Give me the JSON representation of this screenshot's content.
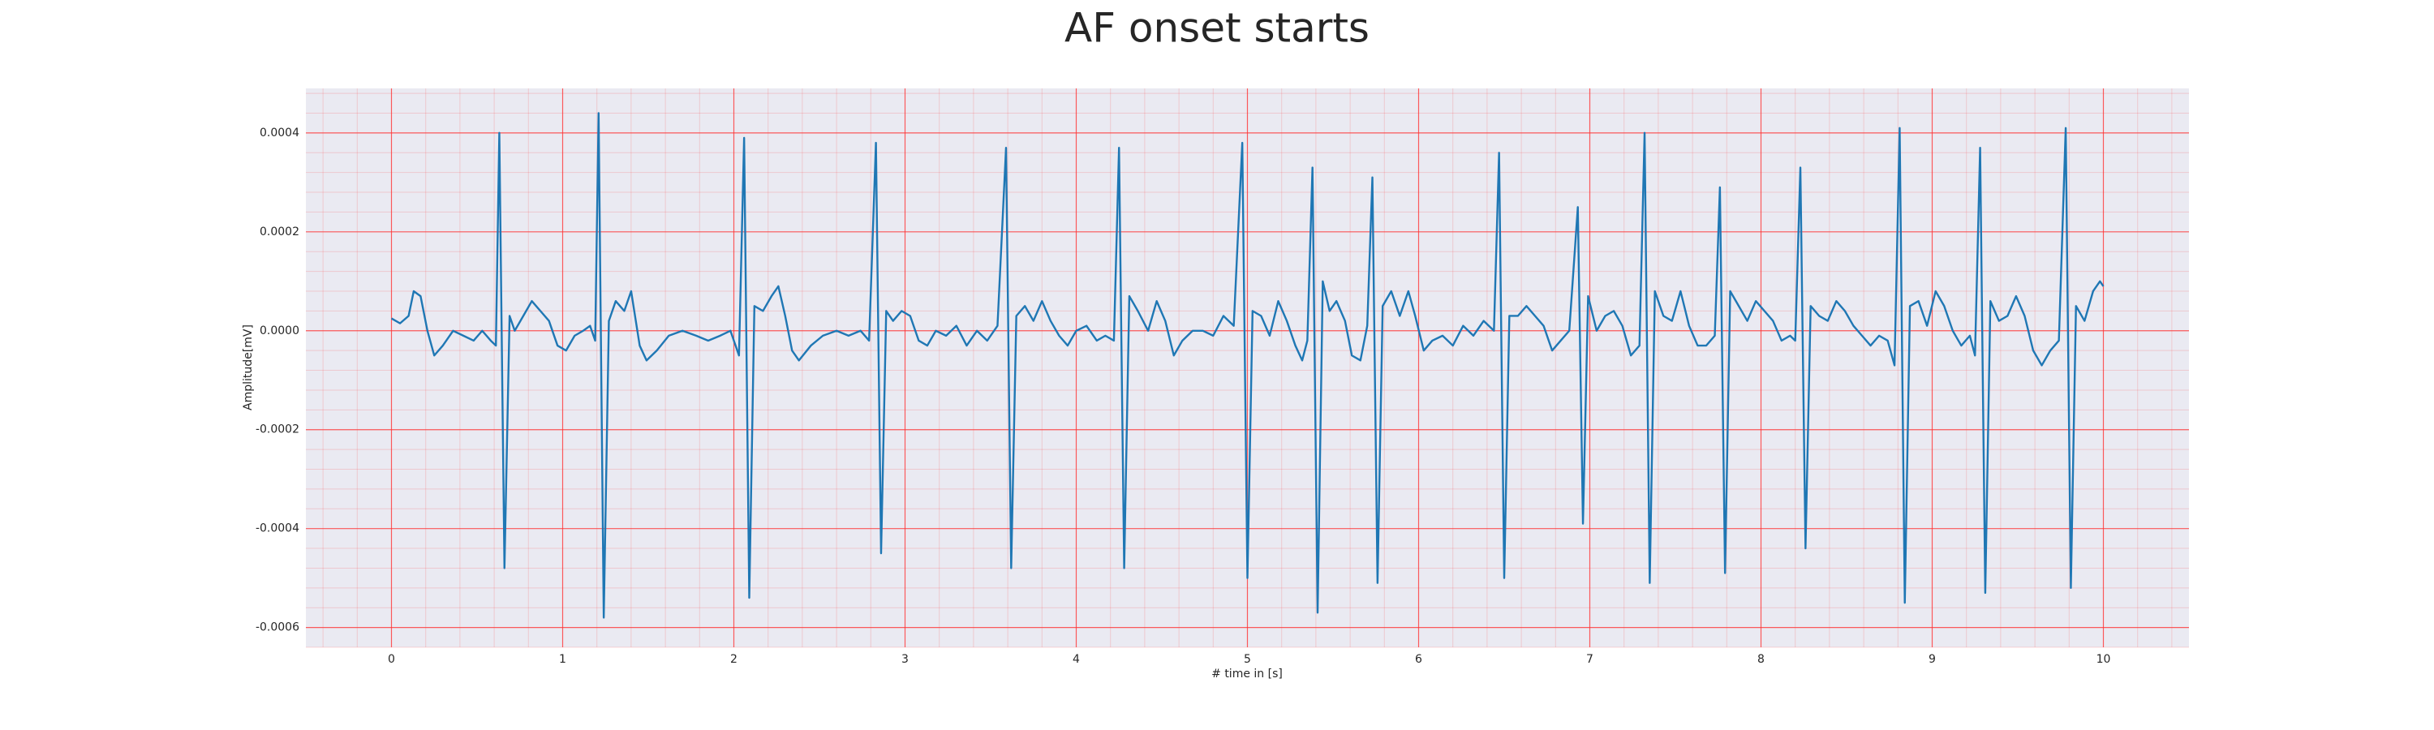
{
  "chart_data": {
    "type": "line",
    "title": "AF onset starts",
    "xlabel": "# time in [s]",
    "ylabel": "Amplitude[mV]",
    "color": "#1f77b4",
    "grid": true,
    "grid_color": "#ff3333",
    "background": "#eaeaf2",
    "xlim": [
      -0.5,
      10.5
    ],
    "ylim": [
      -0.00064,
      0.00049
    ],
    "xticks": [
      0,
      1,
      2,
      3,
      4,
      5,
      6,
      7,
      8,
      9,
      10
    ],
    "yticks": [
      -0.0006,
      -0.0004,
      -0.0002,
      {
        "value": 0,
        "label": "0.0000"
      },
      0.0002,
      0.0004
    ],
    "x": [
      0.0,
      0.05,
      0.1,
      0.13,
      0.17,
      0.21,
      0.25,
      0.3,
      0.36,
      0.42,
      0.48,
      0.53,
      0.58,
      0.61,
      0.63,
      0.66,
      0.69,
      0.72,
      0.77,
      0.82,
      0.87,
      0.92,
      0.97,
      1.02,
      1.07,
      1.12,
      1.16,
      1.19,
      1.21,
      1.24,
      1.27,
      1.31,
      1.36,
      1.4,
      1.45,
      1.49,
      1.55,
      1.62,
      1.7,
      1.78,
      1.85,
      1.92,
      1.98,
      2.03,
      2.06,
      2.09,
      2.12,
      2.17,
      2.22,
      2.26,
      2.3,
      2.34,
      2.38,
      2.45,
      2.52,
      2.6,
      2.67,
      2.74,
      2.79,
      2.83,
      2.86,
      2.89,
      2.93,
      2.98,
      3.03,
      3.08,
      3.13,
      3.18,
      3.24,
      3.3,
      3.36,
      3.42,
      3.48,
      3.54,
      3.59,
      3.62,
      3.65,
      3.7,
      3.75,
      3.8,
      3.85,
      3.9,
      3.95,
      4.0,
      4.06,
      4.12,
      4.17,
      4.22,
      4.25,
      4.28,
      4.31,
      4.36,
      4.42,
      4.47,
      4.52,
      4.57,
      4.62,
      4.68,
      4.74,
      4.8,
      4.86,
      4.92,
      4.97,
      5.0,
      5.03,
      5.08,
      5.13,
      5.18,
      5.23,
      5.28,
      5.32,
      5.35,
      5.38,
      5.41,
      5.44,
      5.48,
      5.52,
      5.57,
      5.61,
      5.66,
      5.7,
      5.73,
      5.76,
      5.79,
      5.84,
      5.89,
      5.94,
      5.98,
      6.03,
      6.08,
      6.14,
      6.2,
      6.26,
      6.32,
      6.38,
      6.44,
      6.47,
      6.5,
      6.53,
      6.58,
      6.63,
      6.68,
      6.73,
      6.78,
      6.83,
      6.88,
      6.93,
      6.96,
      6.99,
      7.04,
      7.09,
      7.14,
      7.19,
      7.24,
      7.29,
      7.32,
      7.35,
      7.38,
      7.43,
      7.48,
      7.53,
      7.58,
      7.63,
      7.68,
      7.73,
      7.76,
      7.79,
      7.82,
      7.87,
      7.92,
      7.97,
      8.02,
      8.07,
      8.12,
      8.17,
      8.2,
      8.23,
      8.26,
      8.29,
      8.34,
      8.39,
      8.44,
      8.49,
      8.54,
      8.59,
      8.64,
      8.69,
      8.74,
      8.78,
      8.81,
      8.84,
      8.87,
      8.92,
      8.97,
      9.02,
      9.07,
      9.12,
      9.17,
      9.22,
      9.25,
      9.28,
      9.31,
      9.34,
      9.39,
      9.44,
      9.49,
      9.54,
      9.59,
      9.64,
      9.69,
      9.74,
      9.78,
      9.81,
      9.84,
      9.89,
      9.94,
      9.98,
      10.0
    ],
    "values": [
      2.5e-05,
      1.5e-05,
      3e-05,
      8e-05,
      7e-05,
      0,
      -5e-05,
      -3e-05,
      0,
      -1e-05,
      -2e-05,
      0,
      -2e-05,
      -3e-05,
      0.0004,
      -0.00048,
      3e-05,
      0,
      3e-05,
      6e-05,
      4e-05,
      2e-05,
      -3e-05,
      -4e-05,
      -1e-05,
      0,
      1e-05,
      -2e-05,
      0.00044,
      -0.00058,
      2e-05,
      6e-05,
      4e-05,
      8e-05,
      -3e-05,
      -6e-05,
      -4e-05,
      -1e-05,
      0,
      -1e-05,
      -2e-05,
      -1e-05,
      0,
      -5e-05,
      0.00039,
      -0.00054,
      5e-05,
      4e-05,
      7e-05,
      9e-05,
      3e-05,
      -4e-05,
      -6e-05,
      -3e-05,
      -1e-05,
      0,
      -1e-05,
      0,
      -2e-05,
      0.00038,
      -0.00045,
      4e-05,
      2e-05,
      4e-05,
      3e-05,
      -2e-05,
      -3e-05,
      0,
      -1e-05,
      1e-05,
      -3e-05,
      0,
      -2e-05,
      1e-05,
      0.00037,
      -0.00048,
      3e-05,
      5e-05,
      2e-05,
      6e-05,
      2e-05,
      -1e-05,
      -3e-05,
      0,
      1e-05,
      -2e-05,
      -1e-05,
      -2e-05,
      0.00037,
      -0.00048,
      7e-05,
      4e-05,
      0,
      6e-05,
      2e-05,
      -5e-05,
      -2e-05,
      0,
      0,
      -1e-05,
      3e-05,
      1e-05,
      0.00038,
      -0.0005,
      4e-05,
      3e-05,
      -1e-05,
      6e-05,
      2e-05,
      -3e-05,
      -6e-05,
      -2e-05,
      0.00033,
      -0.00057,
      0.0001,
      4e-05,
      6e-05,
      2e-05,
      -5e-05,
      -6e-05,
      1e-05,
      0.00031,
      -0.00051,
      5e-05,
      8e-05,
      3e-05,
      8e-05,
      3e-05,
      -4e-05,
      -2e-05,
      -1e-05,
      -3e-05,
      1e-05,
      -1e-05,
      2e-05,
      0,
      0.00036,
      -0.0005,
      3e-05,
      3e-05,
      5e-05,
      3e-05,
      1e-05,
      -4e-05,
      -2e-05,
      0,
      0.00025,
      -0.00039,
      7e-05,
      0,
      3e-05,
      4e-05,
      1e-05,
      -5e-05,
      -3e-05,
      0.0004,
      -0.00051,
      8e-05,
      3e-05,
      2e-05,
      8e-05,
      1e-05,
      -3e-05,
      -3e-05,
      -1e-05,
      0.00029,
      -0.00049,
      8e-05,
      5e-05,
      2e-05,
      6e-05,
      4e-05,
      2e-05,
      -2e-05,
      -1e-05,
      -2e-05,
      0.00033,
      -0.00044,
      5e-05,
      3e-05,
      2e-05,
      6e-05,
      4e-05,
      1e-05,
      -1e-05,
      -3e-05,
      -1e-05,
      -2e-05,
      -7e-05,
      0.00041,
      -0.00055,
      5e-05,
      6e-05,
      1e-05,
      8e-05,
      5e-05,
      0,
      -3e-05,
      -1e-05,
      -5e-05,
      0.00037,
      -0.00053,
      6e-05,
      2e-05,
      3e-05,
      7e-05,
      3e-05,
      -4e-05,
      -7e-05,
      -4e-05,
      -2e-05,
      0.00041,
      -0.00052,
      5e-05,
      2e-05,
      8e-05,
      0.0001,
      9e-05
    ]
  }
}
